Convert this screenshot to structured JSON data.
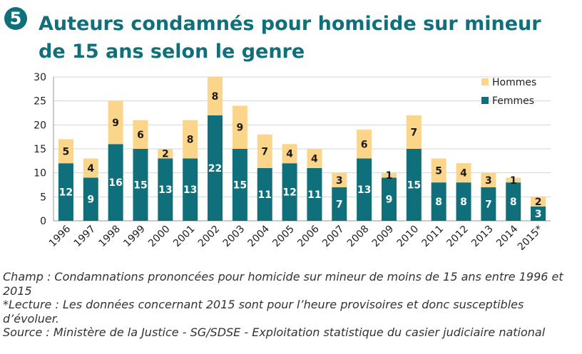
{
  "header": {
    "number": "5",
    "title": "Auteurs condamnés pour homicide sur mineur de 15 ans selon le genre"
  },
  "colors": {
    "accent": "#0f6f7a",
    "hommes": "#fbd58a",
    "femmes": "#0f6f7a"
  },
  "chart_data": {
    "type": "bar",
    "stacked": true,
    "categories": [
      "1996",
      "1997",
      "1998",
      "1999",
      "2000",
      "2001",
      "2002",
      "2003",
      "2004",
      "2005",
      "2006",
      "2007",
      "2008",
      "2009",
      "2010",
      "2011",
      "2012",
      "2013",
      "2014",
      "2015*"
    ],
    "series": [
      {
        "name": "Femmes",
        "values": [
          12,
          9,
          16,
          15,
          13,
          13,
          22,
          15,
          11,
          12,
          11,
          7,
          13,
          9,
          15,
          8,
          8,
          7,
          8,
          3
        ]
      },
      {
        "name": "Hommes",
        "values": [
          5,
          4,
          9,
          6,
          2,
          8,
          8,
          9,
          7,
          4,
          4,
          3,
          6,
          1,
          7,
          5,
          4,
          3,
          1,
          2
        ]
      }
    ],
    "ylim": [
      0,
      30
    ],
    "yticks": [
      "0",
      "5",
      "10",
      "15",
      "20",
      "25",
      "30"
    ],
    "legend_position": "top-right",
    "legend": [
      "Hommes",
      "Femmes"
    ]
  },
  "notes": {
    "champ": "Champ : Condamnations prononcées pour homicide sur mineur de moins de 15 ans entre 1996 et 2015",
    "lecture": "*Lecture : Les données concernant 2015 sont pour l’heure provisoires et donc susceptibles d’évoluer.",
    "source": "Source : Ministère de la Justice - SG/SDSE - Exploitation statistique du casier judiciaire national"
  }
}
